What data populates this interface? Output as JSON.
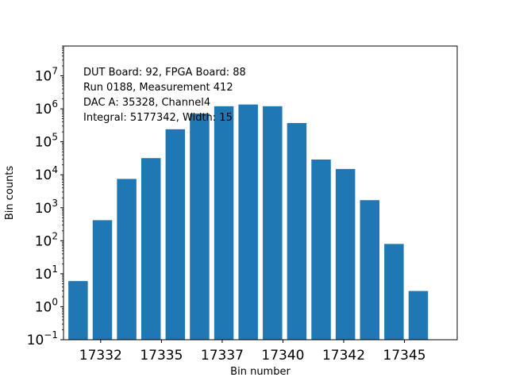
{
  "chart_data": {
    "type": "bar",
    "yscale": "log",
    "xlabel": "Bin number",
    "ylabel": "Bin counts",
    "ylim": [
      0.1,
      80000000
    ],
    "xlim": [
      17330.4,
      17346.6
    ],
    "grid": false,
    "bar_color": "#1f77b4",
    "x": [
      17331,
      17332,
      17333,
      17334,
      17335,
      17336,
      17337,
      17338,
      17339,
      17340,
      17341,
      17342,
      17343,
      17344,
      17345,
      17346
    ],
    "values": [
      6,
      420,
      7500,
      32000,
      240000,
      720000,
      1200000,
      1350000,
      1200000,
      370000,
      29000,
      15000,
      1700,
      80,
      3,
      0
    ],
    "x_ticks": [
      {
        "value": 17331.93,
        "label": "17332"
      },
      {
        "value": 17334.43,
        "label": "17335"
      },
      {
        "value": 17336.93,
        "label": "17337"
      },
      {
        "value": 17339.43,
        "label": "17340"
      },
      {
        "value": 17341.93,
        "label": "17342"
      },
      {
        "value": 17344.43,
        "label": "17345"
      }
    ],
    "y_ticks": [
      {
        "exp": -1,
        "base": "10",
        "sup": "−1"
      },
      {
        "exp": 0,
        "base": "10",
        "sup": "0"
      },
      {
        "exp": 1,
        "base": "10",
        "sup": "1"
      },
      {
        "exp": 2,
        "base": "10",
        "sup": "2"
      },
      {
        "exp": 3,
        "base": "10",
        "sup": "3"
      },
      {
        "exp": 4,
        "base": "10",
        "sup": "4"
      },
      {
        "exp": 5,
        "base": "10",
        "sup": "5"
      },
      {
        "exp": 6,
        "base": "10",
        "sup": "6"
      },
      {
        "exp": 7,
        "base": "10",
        "sup": "7"
      }
    ],
    "annotations": [
      "DUT Board: 92, FPGA Board: 88",
      "Run 0188, Measurement 412",
      "DAC A: 35328, Channel4",
      "Integral: 5177342, Width: 15"
    ]
  }
}
